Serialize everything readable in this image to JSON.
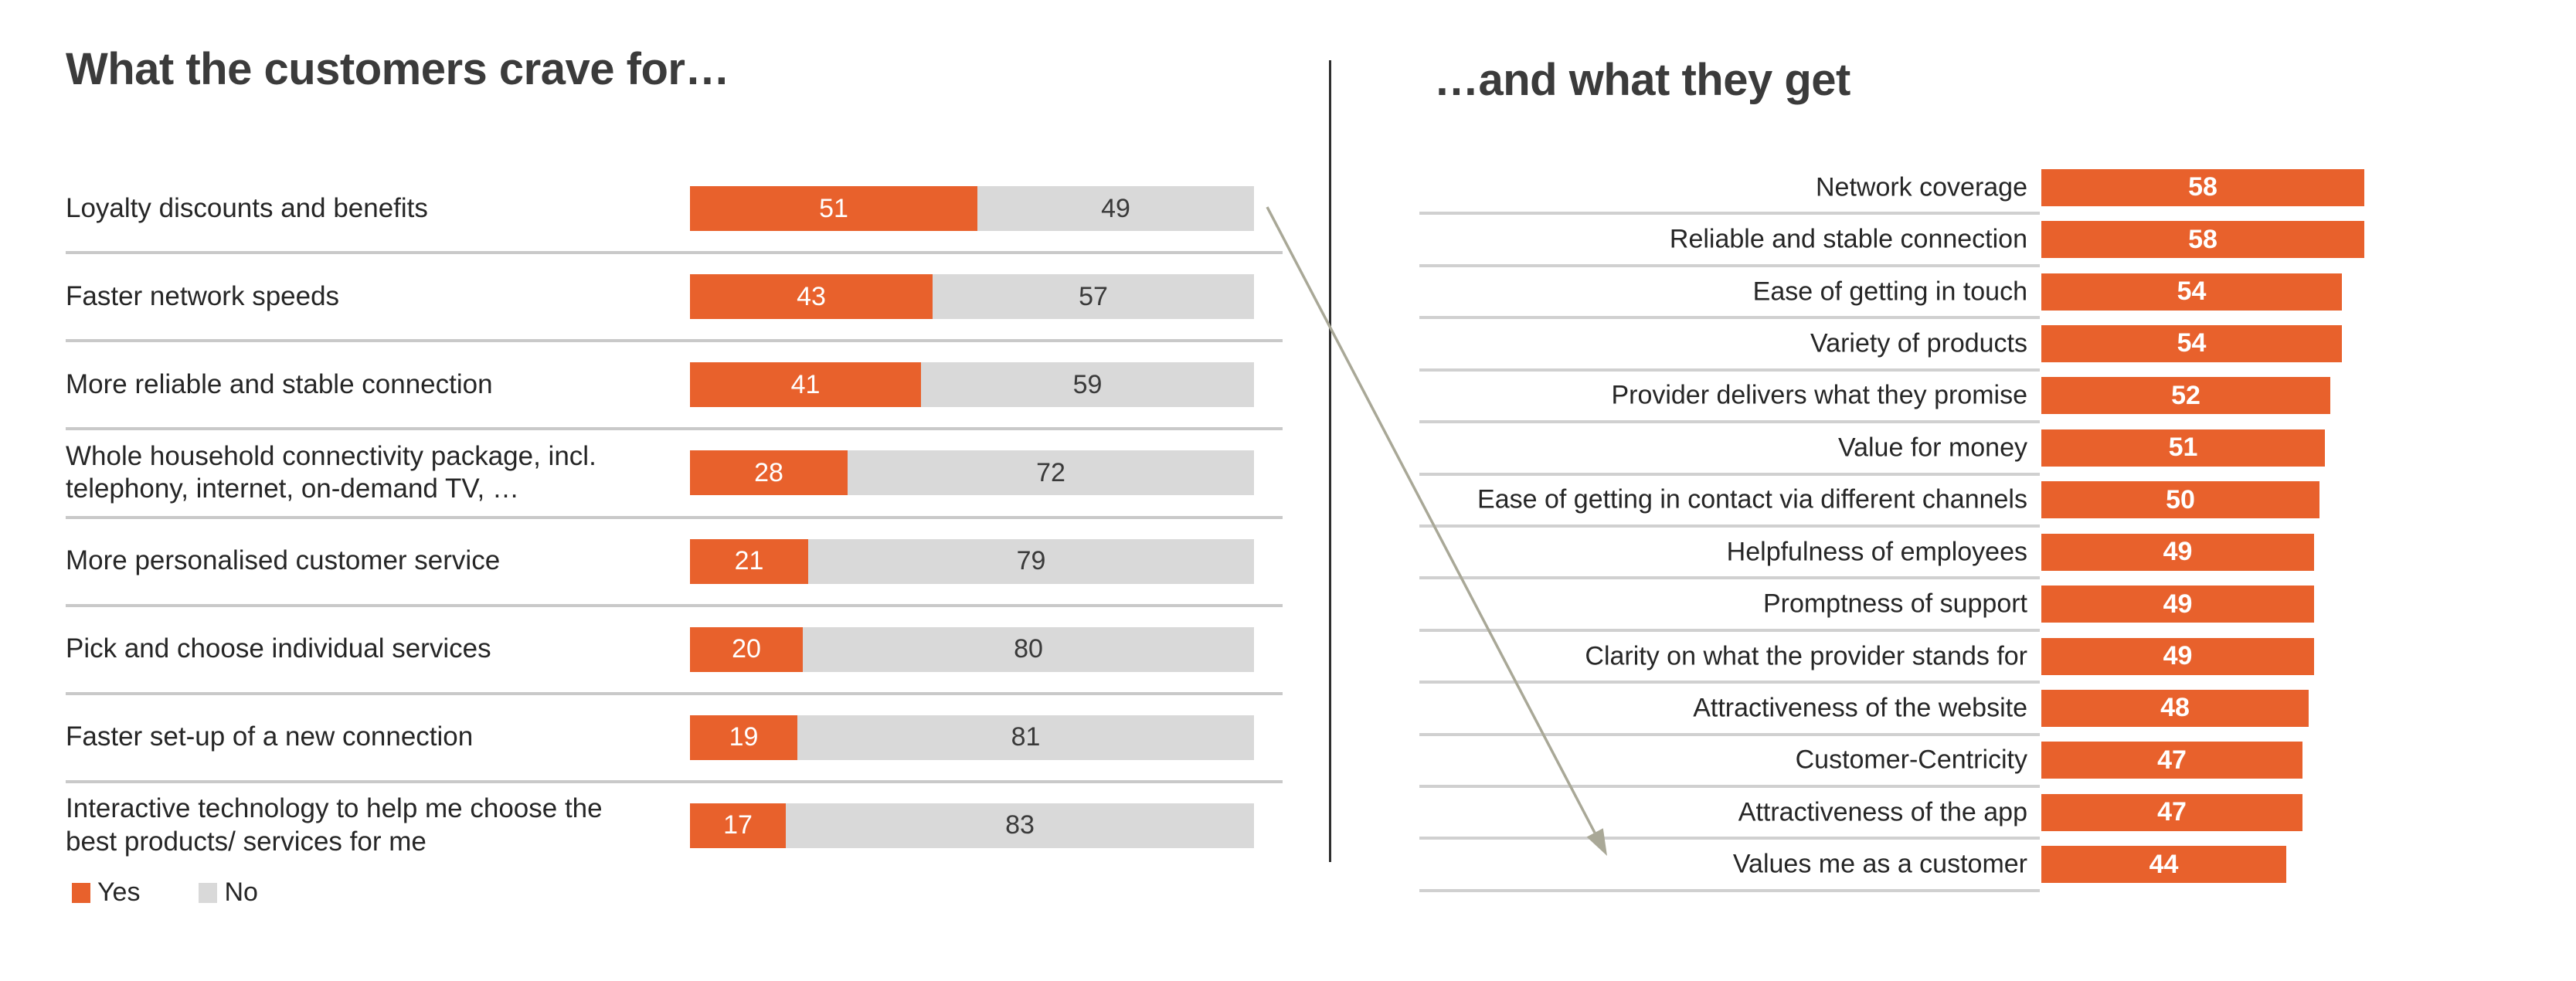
{
  "colors": {
    "yes_bar": "#E8612C",
    "no_bar": "#D9D9D9",
    "title_text": "#3B3B3B",
    "label_text": "#262626",
    "no_value_text": "#3A3A3A",
    "separator_left": "#C9C9C9",
    "separator_right": "#D0D0D0",
    "divider": "#2E2E2E",
    "arrow": "#A9A897"
  },
  "chart_data": [
    {
      "type": "bar",
      "orientation": "horizontal",
      "stacked": true,
      "title": "What the customers crave for…",
      "value_format": "percent",
      "xlim": [
        0,
        100
      ],
      "grid": false,
      "legend_position": "bottom-left",
      "categories": [
        "Loyalty discounts and benefits",
        "Faster network speeds",
        "More reliable and stable connection",
        "Whole household connectivity package, incl.\ntelephony, internet, on-demand TV, …",
        "More personalised customer service",
        "Pick and choose individual services",
        "Faster set-up of a new connection",
        "Interactive technology to help me choose the\nbest products/ services for me"
      ],
      "series": [
        {
          "name": "Yes",
          "color": "#E8612C",
          "values": [
            51,
            43,
            41,
            28,
            21,
            20,
            19,
            17
          ]
        },
        {
          "name": "No",
          "color": "#D9D9D9",
          "values": [
            49,
            57,
            59,
            72,
            79,
            80,
            81,
            83
          ]
        }
      ]
    },
    {
      "type": "bar",
      "orientation": "horizontal",
      "stacked": false,
      "title": "…and what they get",
      "xlim": [
        0,
        100
      ],
      "grid": false,
      "bar_color": "#E8612C",
      "value_labels": "inside, white bold",
      "categories": [
        "Network coverage",
        "Reliable and stable connection",
        "Ease of getting in touch",
        "Variety of products",
        "Provider delivers what they promise",
        "Value for money",
        "Ease of getting in contact via different channels",
        "Helpfulness of employees",
        "Promptness of support",
        "Clarity on what the provider stands for",
        "Attractiveness of the website",
        "Customer-Centricity",
        "Attractiveness of the app",
        "Values me as a customer"
      ],
      "values": [
        58,
        58,
        54,
        54,
        52,
        51,
        50,
        49,
        49,
        49,
        48,
        47,
        47,
        44
      ]
    }
  ],
  "annotation_arrow": {
    "from": "Loyalty discounts and benefits (what customers crave)",
    "to": "Values me as a customer (what they get)",
    "color": "#A9A897"
  }
}
